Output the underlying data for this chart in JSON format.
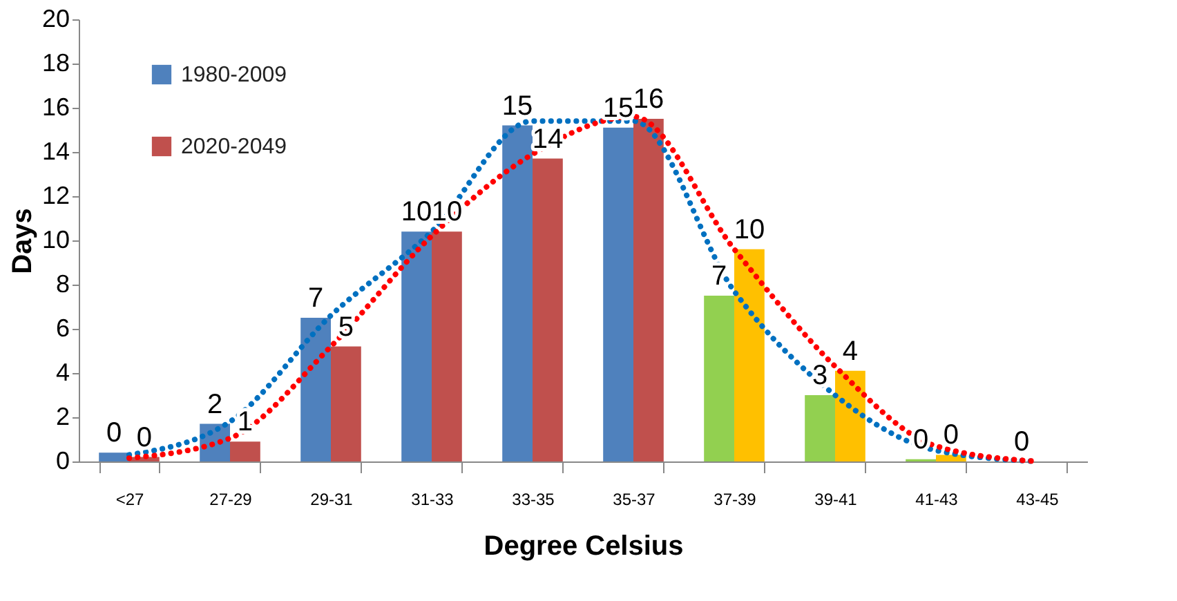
{
  "chart_data": {
    "type": "bar",
    "xlabel": "Degree Celsius",
    "ylabel": "Days",
    "categories": [
      "<27",
      "27-29",
      "29-31",
      "31-33",
      "33-35",
      "35-37",
      "37-39",
      "39-41",
      "41-43",
      "43-45"
    ],
    "ylim": [
      0,
      20
    ],
    "yticks": [
      0,
      2,
      4,
      6,
      8,
      10,
      12,
      14,
      16,
      18,
      20
    ],
    "grid": false,
    "legend": "top left",
    "series": [
      {
        "name": "1980-2009",
        "color": "#4f81bd",
        "colors": [
          "#4f81bd",
          "#4f81bd",
          "#4f81bd",
          "#4f81bd",
          "#4f81bd",
          "#4f81bd",
          "#92d050",
          "#92d050",
          "#92d050",
          "#92d050"
        ],
        "values": [
          0.4,
          1.7,
          6.5,
          10.4,
          15.2,
          15.1,
          7.5,
          3.0,
          0.1,
          0
        ],
        "value_labels": [
          "0",
          "2",
          "7",
          "10",
          "15",
          "15",
          "7",
          "3",
          "0",
          "0"
        ]
      },
      {
        "name": "2020-2049",
        "color": "#c0504d",
        "colors": [
          "#c0504d",
          "#c0504d",
          "#c0504d",
          "#c0504d",
          "#c0504d",
          "#c0504d",
          "#ffc000",
          "#ffc000",
          "#ffc000",
          "#ffc000"
        ],
        "values": [
          0.2,
          0.9,
          5.2,
          10.4,
          13.7,
          15.5,
          9.6,
          4.1,
          0.3,
          0
        ],
        "value_labels": [
          "0",
          "1",
          "5",
          "10",
          "14",
          "16",
          "10",
          "4",
          "0",
          null
        ]
      },
      {
        "type": "line",
        "color": "#0070c0",
        "line_style": "dotted",
        "x": [
          "<27",
          "27-29",
          "29-31",
          "31-33",
          "33-35",
          "35-37",
          "37-39",
          "39-41",
          "41-43",
          "43-45"
        ],
        "values": [
          0.3,
          1.8,
          6.6,
          10.4,
          15.4,
          15.4,
          7.7,
          3.0,
          0.5,
          0
        ]
      },
      {
        "type": "line",
        "color": "#ff0000",
        "line_style": "dotted",
        "x": [
          "<27",
          "27-29",
          "29-31",
          "31-33",
          "33-35",
          "35-37",
          "37-39",
          "39-41",
          "41-43",
          "43-45"
        ],
        "values": [
          0.15,
          1.05,
          5.2,
          10.2,
          13.9,
          15.6,
          9.6,
          4.3,
          0.7,
          0
        ]
      }
    ]
  }
}
